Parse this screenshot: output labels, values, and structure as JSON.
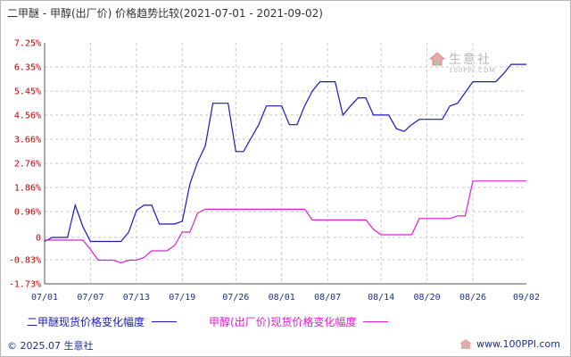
{
  "title": "二甲醚 - 甲醇(出厂价) 价格趋势比较(2021-07-01 - 2021-09-02)",
  "footer": {
    "copyright": "© 2025.07 生意社",
    "site": "www.100PPI.com"
  },
  "watermark": {
    "name": "生意社",
    "url": "100PPI.COM"
  },
  "colors": {
    "series1": "#1a1ab8",
    "series2": "#e020d0",
    "ytick": "#c00000",
    "xtick": "#1f2f8f",
    "grid": "#c8c8c8"
  },
  "chart_data": {
    "type": "line",
    "title": "二甲醚 - 甲醇(出厂价) 价格趋势比较(2021-07-01 - 2021-09-02)",
    "xlabel": "",
    "ylabel": "",
    "ylim": [
      -1.73,
      7.25
    ],
    "y_ticks": [
      "7.25%",
      "6.35%",
      "5.45%",
      "4.56%",
      "3.66%",
      "2.76%",
      "1.86%",
      "0.96%",
      "0",
      "-0.83%",
      "-1.73%"
    ],
    "y_tick_values": [
      7.25,
      6.35,
      5.45,
      4.56,
      3.66,
      2.76,
      1.86,
      0.96,
      0,
      -0.83,
      -1.73
    ],
    "x_ticks": [
      "07/01",
      "07/07",
      "07/13",
      "07/19",
      "07/26",
      "08/01",
      "08/07",
      "08/14",
      "08/20",
      "08/26",
      "09/02"
    ],
    "grid": true,
    "legend_position": "bottom-left",
    "series": [
      {
        "name": "二甲醚现货价格变化幅度",
        "color": "#1a1ab8",
        "points": [
          [
            "2021-07-01",
            -0.15
          ],
          [
            "2021-07-02",
            0.0
          ],
          [
            "2021-07-03",
            0.0
          ],
          [
            "2021-07-04",
            0.0
          ],
          [
            "2021-07-05",
            1.2
          ],
          [
            "2021-07-06",
            0.4
          ],
          [
            "2021-07-07",
            -0.15
          ],
          [
            "2021-07-08",
            -0.15
          ],
          [
            "2021-07-09",
            -0.15
          ],
          [
            "2021-07-10",
            -0.15
          ],
          [
            "2021-07-11",
            -0.15
          ],
          [
            "2021-07-12",
            0.2
          ],
          [
            "2021-07-13",
            1.0
          ],
          [
            "2021-07-14",
            1.2
          ],
          [
            "2021-07-15",
            1.2
          ],
          [
            "2021-07-16",
            0.5
          ],
          [
            "2021-07-17",
            0.5
          ],
          [
            "2021-07-18",
            0.5
          ],
          [
            "2021-07-19",
            0.6
          ],
          [
            "2021-07-20",
            2.0
          ],
          [
            "2021-07-21",
            2.8
          ],
          [
            "2021-07-22",
            3.4
          ],
          [
            "2021-07-23",
            5.0
          ],
          [
            "2021-07-24",
            5.0
          ],
          [
            "2021-07-25",
            5.0
          ],
          [
            "2021-07-26",
            3.2
          ],
          [
            "2021-07-27",
            3.2
          ],
          [
            "2021-07-28",
            3.7
          ],
          [
            "2021-07-29",
            4.2
          ],
          [
            "2021-07-30",
            4.9
          ],
          [
            "2021-07-31",
            4.9
          ],
          [
            "2021-08-01",
            4.9
          ],
          [
            "2021-08-02",
            4.2
          ],
          [
            "2021-08-03",
            4.2
          ],
          [
            "2021-08-04",
            4.9
          ],
          [
            "2021-08-05",
            5.45
          ],
          [
            "2021-08-06",
            5.8
          ],
          [
            "2021-08-07",
            5.8
          ],
          [
            "2021-08-08",
            5.8
          ],
          [
            "2021-08-09",
            4.56
          ],
          [
            "2021-08-10",
            4.9
          ],
          [
            "2021-08-11",
            5.2
          ],
          [
            "2021-08-12",
            5.2
          ],
          [
            "2021-08-13",
            4.56
          ],
          [
            "2021-08-14",
            4.56
          ],
          [
            "2021-08-15",
            4.56
          ],
          [
            "2021-08-16",
            4.05
          ],
          [
            "2021-08-17",
            3.95
          ],
          [
            "2021-08-18",
            4.2
          ],
          [
            "2021-08-19",
            4.4
          ],
          [
            "2021-08-20",
            4.4
          ],
          [
            "2021-08-21",
            4.4
          ],
          [
            "2021-08-22",
            4.4
          ],
          [
            "2021-08-23",
            4.9
          ],
          [
            "2021-08-24",
            5.0
          ],
          [
            "2021-08-25",
            5.4
          ],
          [
            "2021-08-26",
            5.8
          ],
          [
            "2021-08-27",
            5.8
          ],
          [
            "2021-08-28",
            5.8
          ],
          [
            "2021-08-29",
            5.8
          ],
          [
            "2021-08-30",
            6.1
          ],
          [
            "2021-08-31",
            6.45
          ],
          [
            "2021-09-01",
            6.45
          ],
          [
            "2021-09-02",
            6.45
          ]
        ]
      },
      {
        "name": "甲醇(出厂价)现货价格变化幅度",
        "color": "#e020d0",
        "points": [
          [
            "2021-07-01",
            -0.1
          ],
          [
            "2021-07-02",
            -0.1
          ],
          [
            "2021-07-03",
            -0.1
          ],
          [
            "2021-07-04",
            -0.1
          ],
          [
            "2021-07-05",
            -0.1
          ],
          [
            "2021-07-06",
            -0.1
          ],
          [
            "2021-07-07",
            -0.45
          ],
          [
            "2021-07-08",
            -0.85
          ],
          [
            "2021-07-09",
            -0.85
          ],
          [
            "2021-07-10",
            -0.85
          ],
          [
            "2021-07-11",
            -0.95
          ],
          [
            "2021-07-12",
            -0.85
          ],
          [
            "2021-07-13",
            -0.85
          ],
          [
            "2021-07-14",
            -0.75
          ],
          [
            "2021-07-15",
            -0.5
          ],
          [
            "2021-07-16",
            -0.5
          ],
          [
            "2021-07-17",
            -0.5
          ],
          [
            "2021-07-18",
            -0.3
          ],
          [
            "2021-07-19",
            0.2
          ],
          [
            "2021-07-20",
            0.2
          ],
          [
            "2021-07-21",
            0.9
          ],
          [
            "2021-07-22",
            1.05
          ],
          [
            "2021-07-23",
            1.05
          ],
          [
            "2021-07-24",
            1.05
          ],
          [
            "2021-07-25",
            1.05
          ],
          [
            "2021-07-26",
            1.05
          ],
          [
            "2021-07-27",
            1.05
          ],
          [
            "2021-07-28",
            1.05
          ],
          [
            "2021-07-29",
            1.05
          ],
          [
            "2021-07-30",
            1.05
          ],
          [
            "2021-07-31",
            1.05
          ],
          [
            "2021-08-01",
            1.05
          ],
          [
            "2021-08-02",
            1.05
          ],
          [
            "2021-08-03",
            1.05
          ],
          [
            "2021-08-04",
            1.05
          ],
          [
            "2021-08-05",
            0.65
          ],
          [
            "2021-08-06",
            0.65
          ],
          [
            "2021-08-07",
            0.65
          ],
          [
            "2021-08-08",
            0.65
          ],
          [
            "2021-08-09",
            0.65
          ],
          [
            "2021-08-10",
            0.65
          ],
          [
            "2021-08-11",
            0.65
          ],
          [
            "2021-08-12",
            0.65
          ],
          [
            "2021-08-13",
            0.3
          ],
          [
            "2021-08-14",
            0.1
          ],
          [
            "2021-08-15",
            0.1
          ],
          [
            "2021-08-16",
            0.1
          ],
          [
            "2021-08-17",
            0.1
          ],
          [
            "2021-08-18",
            0.1
          ],
          [
            "2021-08-19",
            0.7
          ],
          [
            "2021-08-20",
            0.7
          ],
          [
            "2021-08-21",
            0.7
          ],
          [
            "2021-08-22",
            0.7
          ],
          [
            "2021-08-23",
            0.7
          ],
          [
            "2021-08-24",
            0.8
          ],
          [
            "2021-08-25",
            0.8
          ],
          [
            "2021-08-26",
            2.1
          ],
          [
            "2021-08-27",
            2.1
          ],
          [
            "2021-08-28",
            2.1
          ],
          [
            "2021-08-29",
            2.1
          ],
          [
            "2021-08-30",
            2.1
          ],
          [
            "2021-08-31",
            2.1
          ],
          [
            "2021-09-01",
            2.1
          ],
          [
            "2021-09-02",
            2.1
          ]
        ]
      }
    ]
  }
}
